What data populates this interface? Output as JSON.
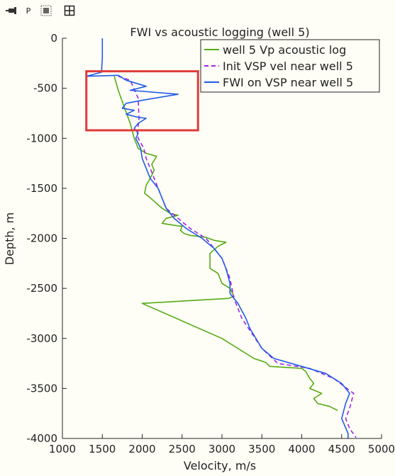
{
  "toolbar": {
    "items": [
      {
        "name": "pin-icon",
        "label": ""
      },
      {
        "name": "probe-button",
        "label": "P"
      },
      {
        "name": "grid-select-icon",
        "label": ""
      },
      {
        "name": "layout-icon",
        "label": ""
      }
    ]
  },
  "colors": {
    "background": "#fffef6",
    "well_log": "#55aa14",
    "init_vsp": "#a020f0",
    "fwi": "#1f5be8",
    "highlight_box": "#e03a3a"
  },
  "chart_data": {
    "type": "line",
    "title": "FWI vs acoustic logging (well 5)",
    "xlabel": "Velocity, m/s",
    "ylabel": "Depth, m",
    "xlim": [
      1000,
      5000
    ],
    "ylim": [
      -4000,
      0
    ],
    "xticks": [
      1000,
      1500,
      2000,
      2500,
      3000,
      3500,
      4000,
      4500,
      5000
    ],
    "yticks": [
      0,
      -500,
      -1000,
      -1500,
      -2000,
      -2500,
      -3000,
      -3500,
      -4000
    ],
    "grid": false,
    "legend_position": "top-right",
    "highlight_box": {
      "x": [
        1300,
        2700
      ],
      "y": [
        -330,
        -920
      ]
    },
    "series": [
      {
        "name": "well 5 Vp acoustic log",
        "style": "solid",
        "color": "#55aa14",
        "points": [
          [
            1650,
            -380
          ],
          [
            1700,
            -520
          ],
          [
            1780,
            -700
          ],
          [
            1850,
            -850
          ],
          [
            1900,
            -1000
          ],
          [
            1950,
            -1100
          ],
          [
            2050,
            -1150
          ],
          [
            2180,
            -1180
          ],
          [
            2120,
            -1260
          ],
          [
            2150,
            -1320
          ],
          [
            2100,
            -1400
          ],
          [
            2050,
            -1470
          ],
          [
            2030,
            -1550
          ],
          [
            2080,
            -1580
          ],
          [
            2150,
            -1630
          ],
          [
            2250,
            -1700
          ],
          [
            2350,
            -1750
          ],
          [
            2450,
            -1770
          ],
          [
            2300,
            -1800
          ],
          [
            2250,
            -1850
          ],
          [
            2400,
            -1870
          ],
          [
            2500,
            -1880
          ],
          [
            2480,
            -1920
          ],
          [
            2520,
            -1950
          ],
          [
            2600,
            -1970
          ],
          [
            2800,
            -1990
          ],
          [
            2900,
            -2020
          ],
          [
            3050,
            -2040
          ],
          [
            2950,
            -2080
          ],
          [
            2850,
            -2150
          ],
          [
            2850,
            -2300
          ],
          [
            2950,
            -2350
          ],
          [
            3000,
            -2450
          ],
          [
            3100,
            -2500
          ],
          [
            3150,
            -2580
          ],
          [
            3080,
            -2600
          ],
          [
            2000,
            -2650
          ],
          [
            3000,
            -3000
          ],
          [
            3400,
            -3200
          ],
          [
            3550,
            -3240
          ],
          [
            3600,
            -3280
          ],
          [
            4000,
            -3300
          ],
          [
            4050,
            -3330
          ],
          [
            4100,
            -3400
          ],
          [
            4150,
            -3450
          ],
          [
            4100,
            -3500
          ],
          [
            4250,
            -3550
          ],
          [
            4150,
            -3600
          ],
          [
            4200,
            -3650
          ],
          [
            4350,
            -3680
          ],
          [
            4450,
            -3720
          ]
        ]
      },
      {
        "name": "Init VSP vel near well 5",
        "style": "dashed",
        "color": "#a020f0",
        "points": [
          [
            1700,
            -380
          ],
          [
            1850,
            -420
          ],
          [
            1950,
            -600
          ],
          [
            1960,
            -800
          ],
          [
            1940,
            -950
          ],
          [
            1950,
            -1000
          ],
          [
            2020,
            -1100
          ],
          [
            2050,
            -1200
          ],
          [
            2100,
            -1300
          ],
          [
            2150,
            -1400
          ],
          [
            2200,
            -1500
          ],
          [
            2250,
            -1600
          ],
          [
            2300,
            -1700
          ],
          [
            2450,
            -1800
          ],
          [
            2600,
            -1900
          ],
          [
            2800,
            -2000
          ],
          [
            2900,
            -2100
          ],
          [
            3000,
            -2200
          ],
          [
            3100,
            -2400
          ],
          [
            3150,
            -2600
          ],
          [
            3250,
            -2800
          ],
          [
            3500,
            -3100
          ],
          [
            3700,
            -3250
          ],
          [
            4100,
            -3300
          ],
          [
            4400,
            -3400
          ],
          [
            4650,
            -3550
          ],
          [
            4600,
            -3700
          ],
          [
            4550,
            -3800
          ],
          [
            4600,
            -3900
          ],
          [
            4680,
            -3990
          ]
        ]
      },
      {
        "name": "FWI on VSP near well 5",
        "style": "solid",
        "color": "#1f5be8",
        "points": [
          [
            1500,
            0
          ],
          [
            1500,
            -200
          ],
          [
            1490,
            -340
          ],
          [
            1300,
            -380
          ],
          [
            1700,
            -370
          ],
          [
            1800,
            -420
          ],
          [
            2050,
            -480
          ],
          [
            1850,
            -520
          ],
          [
            2450,
            -560
          ],
          [
            2000,
            -620
          ],
          [
            1800,
            -650
          ],
          [
            1750,
            -700
          ],
          [
            1900,
            -720
          ],
          [
            1800,
            -760
          ],
          [
            1950,
            -790
          ],
          [
            2050,
            -800
          ],
          [
            1950,
            -850
          ],
          [
            1900,
            -900
          ],
          [
            1950,
            -950
          ],
          [
            1920,
            -1000
          ],
          [
            1980,
            -1100
          ],
          [
            2000,
            -1200
          ],
          [
            2050,
            -1300
          ],
          [
            2100,
            -1400
          ],
          [
            2200,
            -1500
          ],
          [
            2250,
            -1600
          ],
          [
            2300,
            -1700
          ],
          [
            2400,
            -1800
          ],
          [
            2550,
            -1900
          ],
          [
            2750,
            -2000
          ],
          [
            2900,
            -2100
          ],
          [
            3000,
            -2200
          ],
          [
            3050,
            -2300
          ],
          [
            3100,
            -2450
          ],
          [
            3100,
            -2550
          ],
          [
            3200,
            -2650
          ],
          [
            3300,
            -2800
          ],
          [
            3350,
            -2900
          ],
          [
            3500,
            -3100
          ],
          [
            3650,
            -3200
          ],
          [
            4000,
            -3280
          ],
          [
            4300,
            -3350
          ],
          [
            4500,
            -3450
          ],
          [
            4600,
            -3550
          ],
          [
            4550,
            -3650
          ],
          [
            4500,
            -3800
          ],
          [
            4580,
            -3950
          ],
          [
            4580,
            -4000
          ]
        ]
      }
    ]
  }
}
